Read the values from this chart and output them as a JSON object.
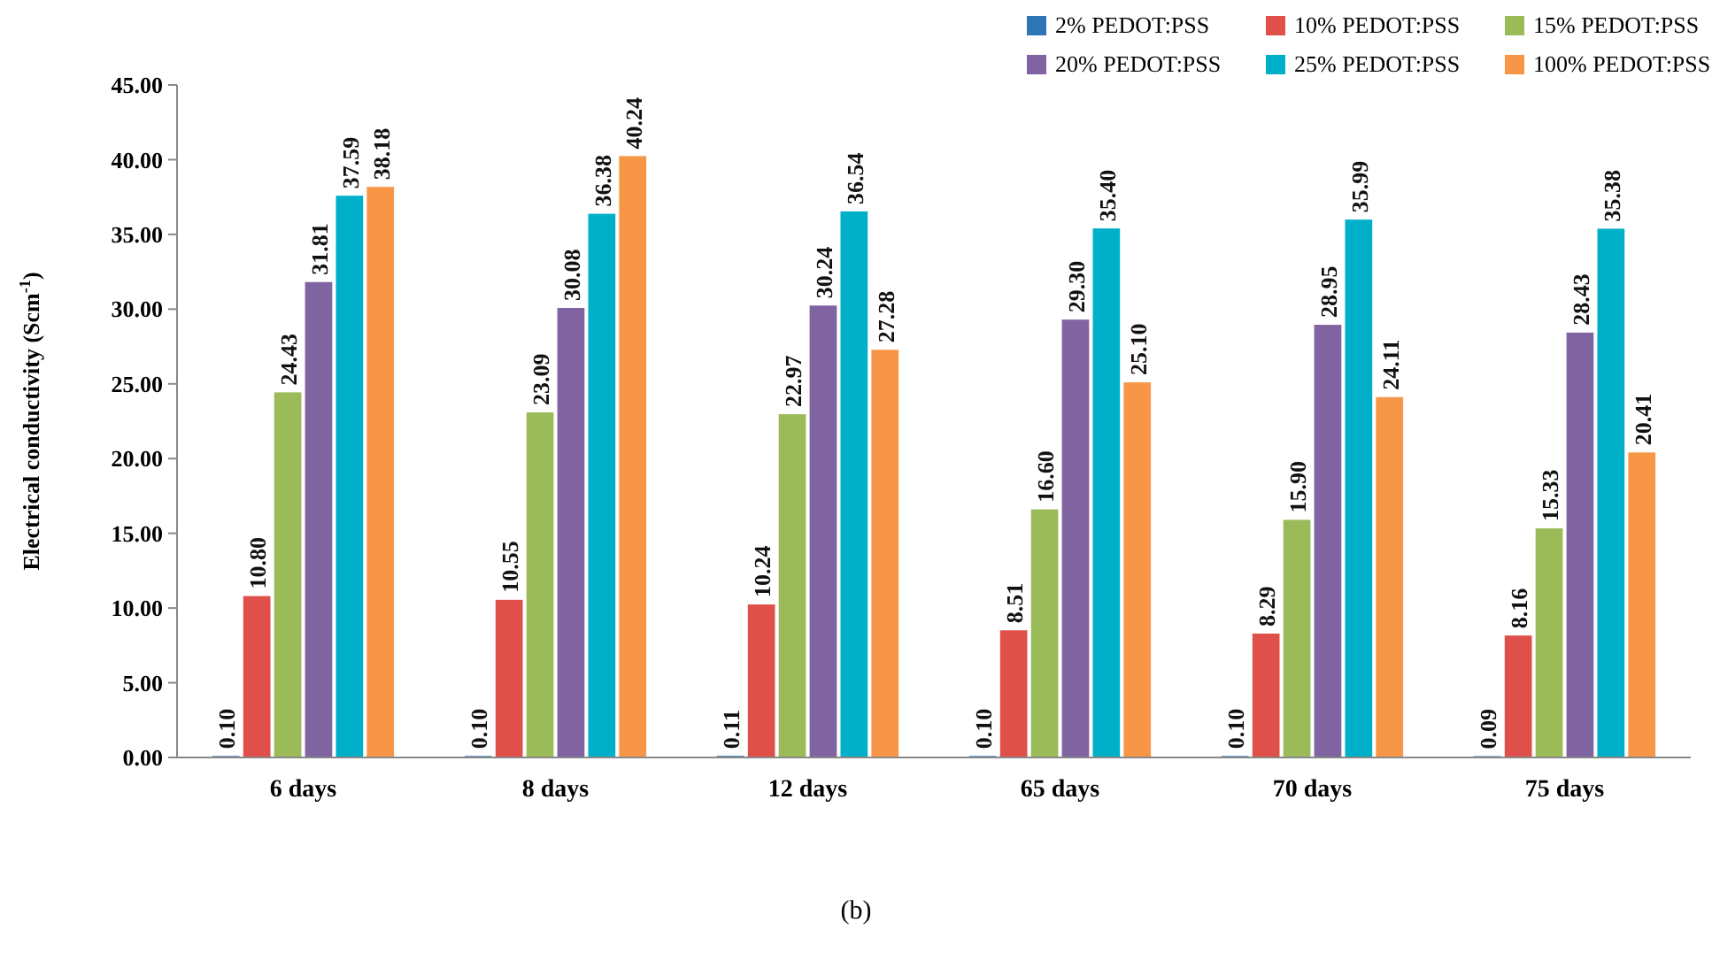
{
  "chart_data": {
    "type": "bar",
    "ylabel": "Electrical conductivity (Scm$^{-1}$)",
    "categories": [
      "6 days",
      "8 days",
      "12 days",
      "65 days",
      "70 days",
      "75 days"
    ],
    "series": [
      {
        "name": "2% PEDOT:PSS",
        "color": "#2e75b6",
        "values": [
          0.1,
          0.1,
          0.11,
          0.1,
          0.1,
          0.09
        ],
        "value_labels": [
          "0.10",
          "0.10",
          "0.11",
          "0.10",
          "0.10",
          "0.09"
        ]
      },
      {
        "name": "10% PEDOT:PSS",
        "color": "#e0504a",
        "values": [
          10.8,
          10.55,
          10.24,
          8.51,
          8.29,
          8.16
        ],
        "value_labels": [
          "10.80",
          "10.55",
          "10.24",
          "8.51",
          "8.29",
          "8.16"
        ]
      },
      {
        "name": "15% PEDOT:PSS",
        "color": "#9bbb59",
        "values": [
          24.43,
          23.09,
          22.97,
          16.6,
          15.9,
          15.33
        ],
        "value_labels": [
          "24.43",
          "23.09",
          "22.97",
          "16.60",
          "15.90",
          "15.33"
        ]
      },
      {
        "name": "20% PEDOT:PSS",
        "color": "#8064a2",
        "values": [
          31.81,
          30.08,
          30.24,
          29.3,
          28.95,
          28.43
        ],
        "value_labels": [
          "31.81",
          "30.08",
          "30.24",
          "29.30",
          "28.95",
          "28.43"
        ]
      },
      {
        "name": "25% PEDOT:PSS",
        "color": "#00b0c8",
        "values": [
          37.59,
          36.38,
          36.54,
          35.4,
          35.99,
          35.38
        ],
        "value_labels": [
          "37.59",
          "36.38",
          "36.54",
          "35.40",
          "35.99",
          "35.38"
        ]
      },
      {
        "name": "100% PEDOT:PSS",
        "color": "#f79646",
        "values": [
          38.18,
          40.24,
          27.28,
          25.1,
          24.11,
          20.41
        ],
        "value_labels": [
          "38.18",
          "40.24",
          "27.28",
          "25.10",
          "24.11",
          "20.41"
        ]
      }
    ],
    "ylim": [
      0,
      45
    ],
    "yticks": [
      {
        "value": 0,
        "label": "0.00"
      },
      {
        "value": 5,
        "label": "5.00"
      },
      {
        "value": 10,
        "label": "10.00"
      },
      {
        "value": 15,
        "label": "15.00"
      },
      {
        "value": 20,
        "label": "20.00"
      },
      {
        "value": 25,
        "label": "25.00"
      },
      {
        "value": 30,
        "label": "30.00"
      },
      {
        "value": 35,
        "label": "35.00"
      },
      {
        "value": 40,
        "label": "40.00"
      },
      {
        "value": 45,
        "label": "45.00"
      }
    ],
    "grid": false,
    "legend": "top right",
    "annotations": [
      "(b)"
    ]
  }
}
